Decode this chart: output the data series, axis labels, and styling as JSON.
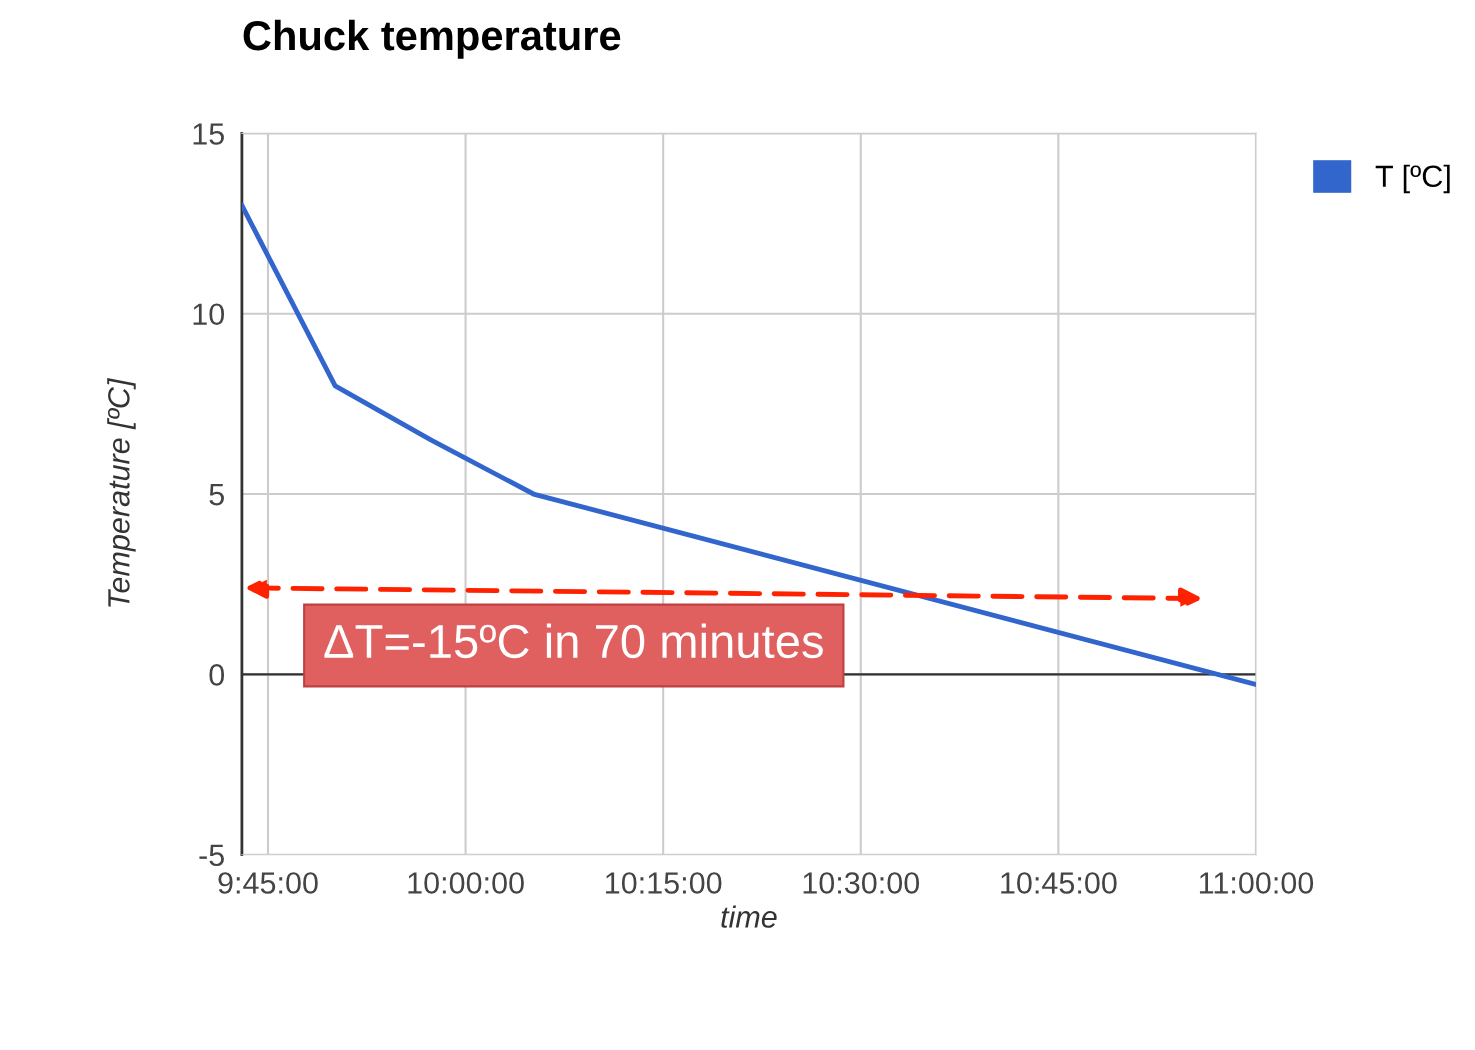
{
  "chart_data": {
    "type": "line",
    "title": "Chuck temperature",
    "xlabel": "time",
    "ylabel": "Temperature [ºC]",
    "x": [
      9.717,
      9.835,
      9.956,
      10.086,
      11.0
    ],
    "series": [
      {
        "name": "T [ºC]",
        "color": "#3366cc",
        "values": [
          13.0,
          8.0,
          6.5,
          5.0,
          -0.28
        ]
      }
    ],
    "xlim": [
      9.717,
      11.0
    ],
    "xticks": [
      {
        "value": 9.75,
        "label": "9:45:00"
      },
      {
        "value": 10.0,
        "label": "10:00:00"
      },
      {
        "value": 10.25,
        "label": "10:15:00"
      },
      {
        "value": 10.5,
        "label": "10:30:00"
      },
      {
        "value": 10.75,
        "label": "10:45:00"
      },
      {
        "value": 11.0,
        "label": "11:00:00"
      }
    ],
    "ylim": [
      -5,
      15
    ],
    "yticks": [
      -5,
      0,
      5,
      10,
      15
    ],
    "ref_lines": [
      {
        "axis": "y",
        "value": 0,
        "color": "#333333"
      }
    ],
    "annotations": [
      "ΔT=-15ºC in 70 minutes"
    ],
    "grid": true,
    "legend": "top right",
    "marker": "none",
    "line_style": "solid"
  }
}
